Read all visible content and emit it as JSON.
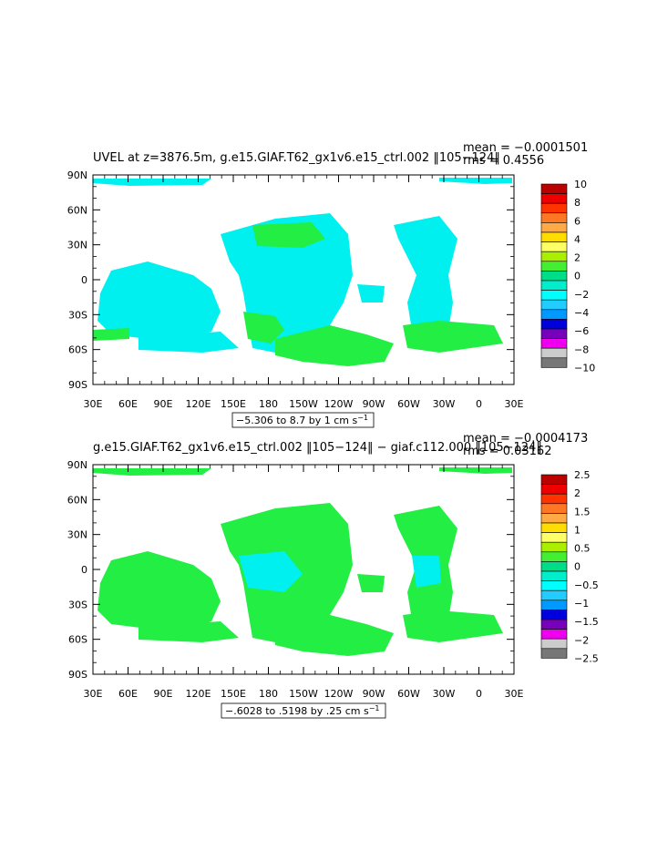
{
  "chart_data": [
    {
      "type": "heatmap",
      "title": "UVEL at z=3876.5m, g.e15.GIAF.T62_gx1v6.e15_ctrl.002 ‖105−124‖",
      "stats": {
        "mean": "mean = −0.0001501",
        "rms": "rms = 0.4556"
      },
      "contour_info": {
        "prefix": "−5.306 to 8.7 by 1 cm s",
        "unit_sup": "−1"
      },
      "x_ticks": [
        "30E",
        "60E",
        "90E",
        "120E",
        "150E",
        "180",
        "150W",
        "120W",
        "90W",
        "60W",
        "30W",
        "0",
        "30E"
      ],
      "y_ticks": [
        "90N",
        "60N",
        "30N",
        "0",
        "30S",
        "60S",
        "90S"
      ],
      "legend_levels": [
        "10",
        "8",
        "6",
        "4",
        "2",
        "0",
        "−2",
        "−4",
        "−6",
        "−8",
        "−10"
      ]
    },
    {
      "type": "heatmap",
      "title": "g.e15.GIAF.T62_gx1v6.e15_ctrl.002 ‖105−124‖ − giaf.c112.000 ‖105−124‖",
      "stats": {
        "mean": "mean = −0.0004173",
        "rms": "rms = 0.03162"
      },
      "contour_info": {
        "prefix": "−.6028 to .5198 by .25 cm s",
        "unit_sup": "−1"
      },
      "x_ticks": [
        "30E",
        "60E",
        "90E",
        "120E",
        "150E",
        "180",
        "150W",
        "120W",
        "90W",
        "60W",
        "30W",
        "0",
        "30E"
      ],
      "y_ticks": [
        "90N",
        "60N",
        "30N",
        "0",
        "30S",
        "60S",
        "90S"
      ],
      "legend_levels": [
        "2.5",
        "2",
        "1.5",
        "1",
        "0.5",
        "0",
        "−0.5",
        "−1",
        "−1.5",
        "−2",
        "−2.5"
      ]
    }
  ],
  "colors": {
    "scale": [
      "#bb0000",
      "#ee0000",
      "#ff3300",
      "#ff7722",
      "#ffaa44",
      "#ffdd00",
      "#ffff66",
      "#aaee00",
      "#44ee33",
      "#00dd88",
      "#00eecc",
      "#00ffff",
      "#22ccff",
      "#0099ff",
      "#0000dd",
      "#7700bb",
      "#ee00ee",
      "#cccccc",
      "#777777"
    ],
    "field_main": "#00f0f0",
    "field_near_zero": "#22ee44",
    "outline": "#000000"
  }
}
